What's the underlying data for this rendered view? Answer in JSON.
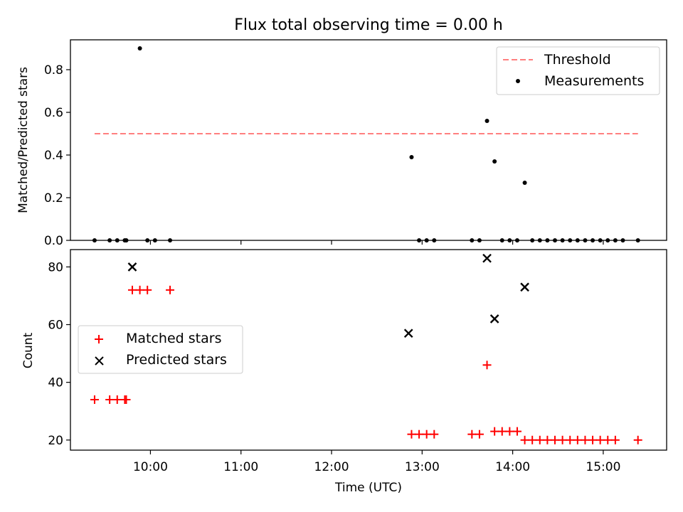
{
  "figure": {
    "title": "Flux total observing time = 0.00 h",
    "xlabel": "Time (UTC)"
  },
  "chart_data": [
    {
      "type": "scatter",
      "name": "top",
      "ylabel": "Matched/Predicted stars",
      "ylim": [
        0,
        0.94
      ],
      "yticks": [
        0.0,
        0.2,
        0.4,
        0.6,
        0.8
      ],
      "ytick_labels": [
        "0.0",
        "0.2",
        "0.4",
        "0.6",
        "0.8"
      ],
      "legend": "top-right",
      "threshold": {
        "name": "Threshold",
        "value": 0.5,
        "x_start": "09:23",
        "x_end": "15:23",
        "color": "#ff7f7f"
      },
      "series": [
        {
          "name": "Measurements",
          "color": "#000000",
          "x": [
            "09:23",
            "09:33",
            "09:38",
            "09:43",
            "09:44",
            "09:53",
            "09:58",
            "10:03",
            "10:13",
            "12:53",
            "12:58",
            "13:03",
            "13:08",
            "13:33",
            "13:38",
            "13:43",
            "13:48",
            "13:53",
            "13:58",
            "14:03",
            "14:08",
            "14:13",
            "14:18",
            "14:23",
            "14:28",
            "14:33",
            "14:38",
            "14:43",
            "14:48",
            "14:53",
            "14:58",
            "15:03",
            "15:08",
            "15:13",
            "15:23"
          ],
          "y": [
            0,
            0,
            0,
            0,
            0,
            0.9,
            0,
            0,
            0,
            0.39,
            0,
            0,
            0,
            0,
            0,
            0.56,
            0.37,
            0,
            0,
            0,
            0.27,
            0,
            0,
            0,
            0,
            0,
            0,
            0,
            0,
            0,
            0,
            0,
            0,
            0,
            0
          ]
        }
      ]
    },
    {
      "type": "scatter",
      "name": "bottom",
      "ylabel": "Count",
      "ylim": [
        16.5,
        86
      ],
      "yticks": [
        20,
        40,
        60,
        80
      ],
      "ytick_labels": [
        "20",
        "40",
        "60",
        "80"
      ],
      "xlim": [
        "09:07",
        "15:42"
      ],
      "xticks": [
        "10:00",
        "11:00",
        "12:00",
        "13:00",
        "14:00",
        "15:00"
      ],
      "legend": "center-left",
      "series": [
        {
          "name": "Matched stars",
          "marker": "plus",
          "color": "#ff0000",
          "x": [
            "09:23",
            "09:33",
            "09:38",
            "09:43",
            "09:44",
            "09:48",
            "09:53",
            "09:58",
            "10:13",
            "12:53",
            "12:58",
            "13:03",
            "13:08",
            "13:33",
            "13:38",
            "13:43",
            "13:48",
            "13:53",
            "13:58",
            "14:03",
            "14:08",
            "14:13",
            "14:18",
            "14:23",
            "14:28",
            "14:33",
            "14:38",
            "14:43",
            "14:48",
            "14:53",
            "14:58",
            "15:03",
            "15:08",
            "15:23"
          ],
          "y": [
            34,
            34,
            34,
            34,
            34,
            72,
            72,
            72,
            72,
            22,
            22,
            22,
            22,
            22,
            22,
            46,
            23,
            23,
            23,
            23,
            20,
            20,
            20,
            20,
            20,
            20,
            20,
            20,
            20,
            20,
            20,
            20,
            20,
            20
          ]
        },
        {
          "name": "Predicted stars",
          "marker": "x",
          "color": "#000000",
          "x": [
            "09:48",
            "12:51",
            "13:43",
            "13:48",
            "14:08"
          ],
          "y": [
            80,
            57,
            83,
            62,
            73
          ]
        }
      ]
    }
  ]
}
